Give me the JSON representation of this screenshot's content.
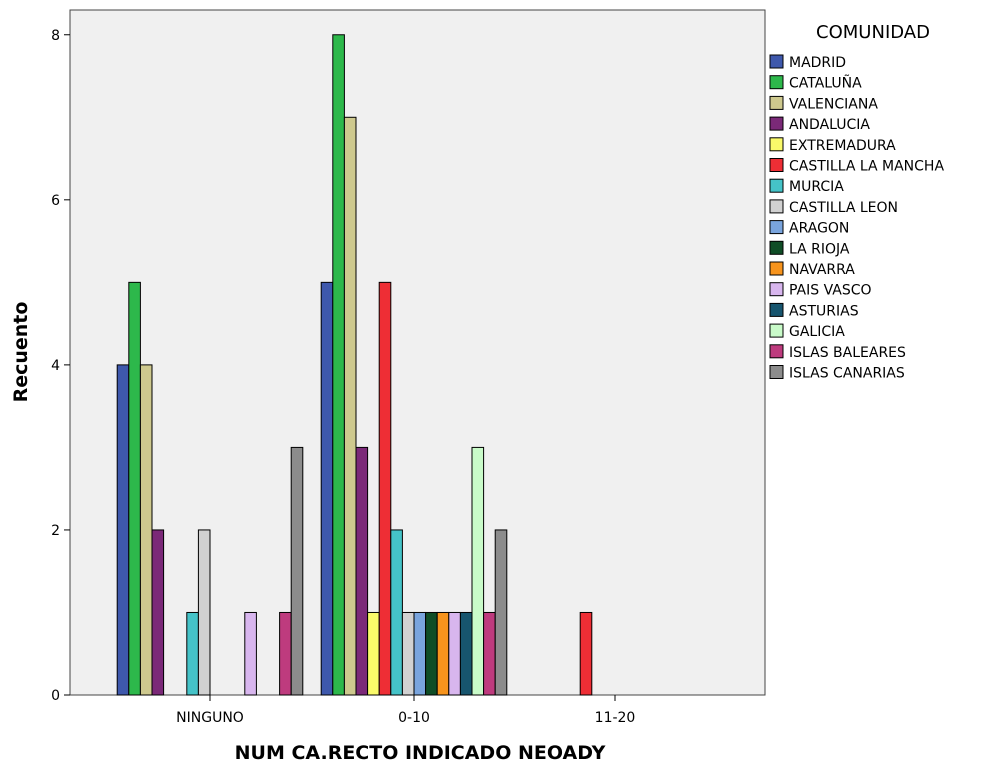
{
  "chart_data": {
    "type": "bar",
    "title": "",
    "xlabel": "NUM CA.RECTO INDICADO NEOADY",
    "ylabel": "Recuento",
    "categories": [
      "NINGUNO",
      "0-10",
      "11-20"
    ],
    "ylim": [
      0,
      8.3
    ],
    "yticks": [
      0,
      2,
      4,
      6,
      8
    ],
    "grid": false,
    "legend_title": "COMUNIDAD",
    "legend_position": "right",
    "series": [
      {
        "name": "MADRID",
        "color": "#3e58ac",
        "values": [
          4,
          5,
          0
        ]
      },
      {
        "name": "CATALUÑA",
        "color": "#2db84b",
        "values": [
          5,
          8,
          0
        ]
      },
      {
        "name": "VALENCIANA",
        "color": "#cec98e",
        "values": [
          4,
          7,
          0
        ]
      },
      {
        "name": "ANDALUCIA",
        "color": "#7b2978",
        "values": [
          2,
          3,
          0
        ]
      },
      {
        "name": "EXTREMADURA",
        "color": "#fafa6a",
        "values": [
          0,
          1,
          0
        ]
      },
      {
        "name": "CASTILLA LA MANCHA",
        "color": "#ee2e35",
        "values": [
          0,
          5,
          1
        ]
      },
      {
        "name": "MURCIA",
        "color": "#45c3c8",
        "values": [
          1,
          2,
          0
        ]
      },
      {
        "name": "CASTILLA LEON",
        "color": "#d1d1d1",
        "values": [
          2,
          1,
          0
        ]
      },
      {
        "name": "ARAGON",
        "color": "#79a4dd",
        "values": [
          0,
          1,
          0
        ]
      },
      {
        "name": "LA RIOJA",
        "color": "#0f4d26",
        "values": [
          0,
          1,
          0
        ]
      },
      {
        "name": "NAVARRA",
        "color": "#f7941d",
        "values": [
          0,
          1,
          0
        ]
      },
      {
        "name": "PAIS VASCO",
        "color": "#d8b6ee",
        "values": [
          1,
          1,
          0
        ]
      },
      {
        "name": "ASTURIAS",
        "color": "#17556e",
        "values": [
          0,
          1,
          0
        ]
      },
      {
        "name": "GALICIA",
        "color": "#c9fbc9",
        "values": [
          0,
          3,
          0
        ]
      },
      {
        "name": "ISLAS BALEARES",
        "color": "#be3b7e",
        "values": [
          1,
          1,
          0
        ]
      },
      {
        "name": "ISLAS CANARIAS",
        "color": "#8c8c8c",
        "values": [
          3,
          2,
          0
        ]
      }
    ]
  }
}
